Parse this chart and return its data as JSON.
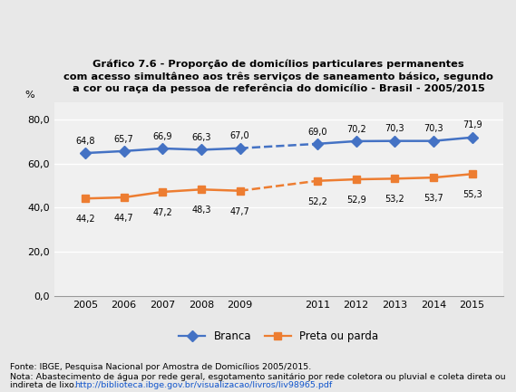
{
  "title": "Gráfico 7.6 - Proporção de domicílios particulares permanentes\ncom acesso simultâneo aos três serviços de saneamento básico, segundo\na cor ou raça da pessoa de referência do domicílio - Brasil - 2005/2015",
  "years": [
    2005,
    2006,
    2007,
    2008,
    2009,
    2011,
    2012,
    2013,
    2014,
    2015
  ],
  "branca": [
    64.8,
    65.7,
    66.9,
    66.3,
    67.0,
    69.0,
    70.2,
    70.3,
    70.3,
    71.9
  ],
  "preta_parda": [
    44.2,
    44.7,
    47.2,
    48.3,
    47.7,
    52.2,
    52.9,
    53.2,
    53.7,
    55.3
  ],
  "branca_color": "#4472C4",
  "preta_parda_color": "#ED7D31",
  "ylabel": "%",
  "yticks": [
    0.0,
    20.0,
    40.0,
    60.0,
    80.0
  ],
  "ylim": [
    0,
    88
  ],
  "xlim": [
    2004.2,
    2015.8
  ],
  "background_color": "#E8E8E8",
  "plot_background": "#F0F0F0",
  "fonte": "Fonte: IBGE, Pesquisa Nacional por Amostra de Domicílios 2005/2015.",
  "nota": "Nota: Abastecimento de água por rede geral, esgotamento sanitário por rede coletora ou pluvial e coleta direta ou\nindireta de lixo.",
  "url": "http://biblioteca.ibge.gov.br/visualizacao/livros/liv98965.pdf",
  "legend_branca": "Branca",
  "legend_preta": "Preta ou parda"
}
